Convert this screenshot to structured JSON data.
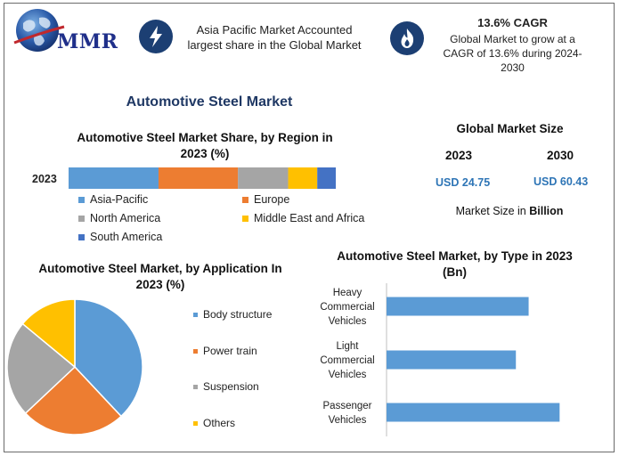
{
  "header": {
    "logo_text": "MMR",
    "card1": {
      "icon": "lightning-icon",
      "text": "Asia Pacific Market Accounted largest share in the Global Market"
    },
    "card2": {
      "icon": "flame-icon",
      "heading": "13.6% CAGR",
      "text": "Global Market to grow at a CAGR of 13.6% during 2024-2030"
    }
  },
  "main_title": "Automotive Steel Market",
  "global_size": {
    "title": "Global Market Size",
    "years": [
      "2023",
      "2030"
    ],
    "values": [
      "USD 24.75",
      "USD 60.43"
    ],
    "unit_prefix": "Market Size in ",
    "unit_bold": "Billion"
  },
  "colors": {
    "blue": "#5b9bd5",
    "orange": "#ed7d31",
    "gray": "#a5a5a5",
    "yellow": "#ffc000",
    "darkblue": "#4472c4",
    "navy": "#1c3f73",
    "title_navy": "#1f3864"
  },
  "chart_data": [
    {
      "type": "bar",
      "orientation": "horizontal-stacked",
      "title": "Automotive Steel Market Share, by Region in 2023 (%)",
      "categories": [
        "2023"
      ],
      "series": [
        {
          "name": "Asia-Pacific",
          "values": [
            34
          ],
          "color": "#5b9bd5"
        },
        {
          "name": "Europe",
          "values": [
            30
          ],
          "color": "#ed7d31"
        },
        {
          "name": "North America",
          "values": [
            19
          ],
          "color": "#a5a5a5"
        },
        {
          "name": "Middle East and Africa",
          "values": [
            11
          ],
          "color": "#ffc000"
        },
        {
          "name": "South America",
          "values": [
            7
          ],
          "color": "#4472c4"
        }
      ],
      "xlim": [
        0,
        101
      ],
      "legend": "bottom"
    },
    {
      "type": "pie",
      "title": "Automotive Steel Market, by Application In 2023 (%)",
      "labels": [
        "Body structure",
        "Power train",
        "Suspension",
        "Others"
      ],
      "values": [
        38,
        25,
        23,
        14
      ],
      "colors": [
        "#5b9bd5",
        "#ed7d31",
        "#a5a5a5",
        "#ffc000"
      ],
      "legend": "right"
    },
    {
      "type": "bar",
      "orientation": "horizontal",
      "title": "Automotive Steel Market, by Type in 2023 (Bn)",
      "categories": [
        {
          "lines": [
            "Heavy",
            "Commercial",
            "Vehicles"
          ]
        },
        {
          "lines": [
            "Light",
            "Commercial",
            "Vehicles"
          ]
        },
        {
          "lines": [
            "Passenger",
            "Vehicles"
          ]
        }
      ],
      "values": [
        7.8,
        7.1,
        9.5
      ],
      "color": "#5b9bd5",
      "xlim": [
        0,
        11
      ]
    }
  ]
}
